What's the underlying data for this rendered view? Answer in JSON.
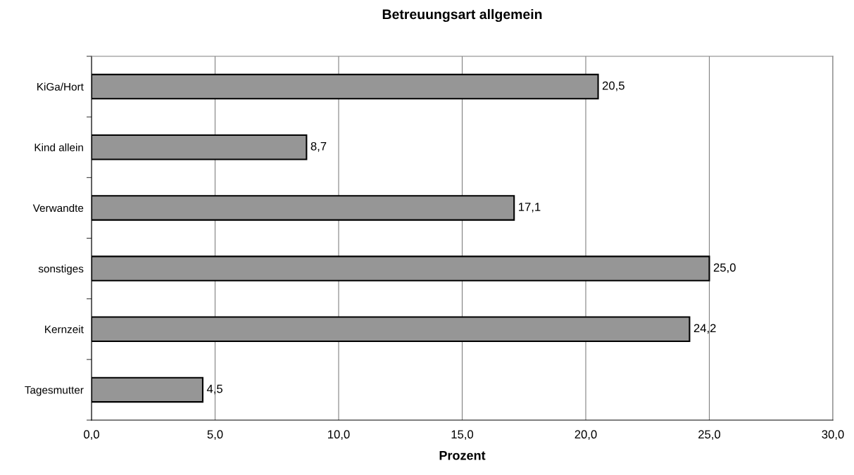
{
  "chart_data": {
    "type": "bar",
    "orientation": "horizontal",
    "title": "Betreuungsart allgemein",
    "xlabel": "Prozent",
    "categories": [
      "KiGa/Hort",
      "Kind allein",
      "Verwandte",
      "sonstiges",
      "Kernzeit",
      "Tagesmutter"
    ],
    "values": [
      20.5,
      8.7,
      17.1,
      25.0,
      24.2,
      4.5
    ],
    "value_labels": [
      "20,5",
      "8,7",
      "17,1",
      "25,0",
      "24,2",
      "4,5"
    ],
    "color": "#969696",
    "xlim": [
      0,
      30
    ],
    "xticks": [
      {
        "value": 0,
        "label": "0,0"
      },
      {
        "value": 5,
        "label": "5,0"
      },
      {
        "value": 10,
        "label": "10,0"
      },
      {
        "value": 15,
        "label": "15,0"
      },
      {
        "value": 20,
        "label": "20,0"
      },
      {
        "value": 25,
        "label": "25,0"
      },
      {
        "value": 30,
        "label": "30,0"
      }
    ],
    "grid": "x",
    "legend": false
  }
}
